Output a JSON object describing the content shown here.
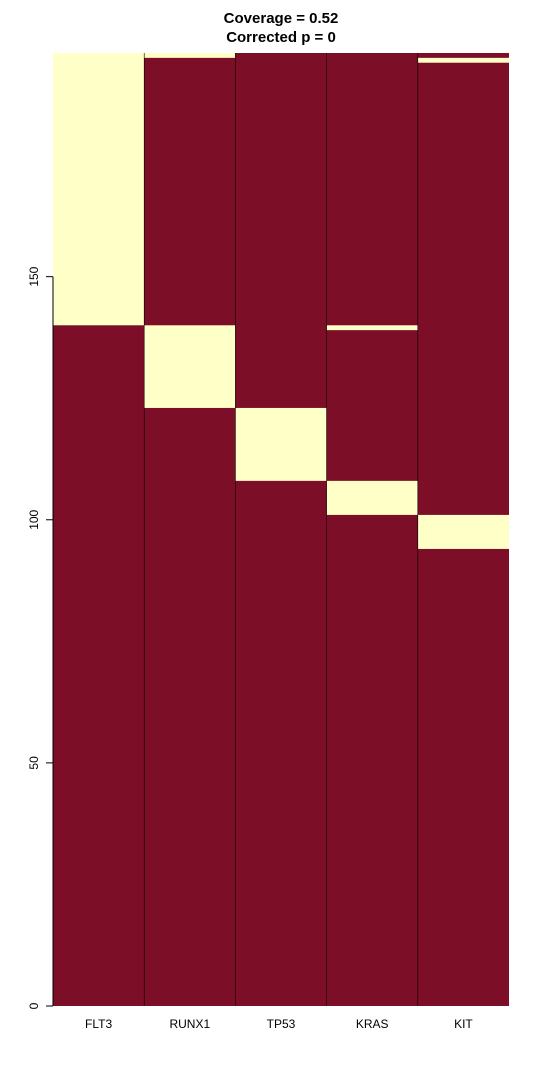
{
  "chart_data": {
    "type": "heatmap",
    "title_lines": [
      "Coverage = 0.52",
      "Corrected p = 0"
    ],
    "xlabel": "",
    "ylabel": "",
    "categories": [
      "FLT3",
      "RUNX1",
      "TP53",
      "KRAS",
      "KIT"
    ],
    "y_ticks": [
      0,
      50,
      100,
      150
    ],
    "ylim": [
      0,
      196
    ],
    "colors": {
      "present": "#FFFFC8",
      "absent": "#7D0E27",
      "grid": "#000000",
      "axis": "#000000"
    },
    "present_ranges": [
      {
        "category": "FLT3",
        "ranges": [
          [
            140,
            196
          ]
        ]
      },
      {
        "category": "RUNX1",
        "ranges": [
          [
            123,
            140
          ],
          [
            195,
            196
          ]
        ]
      },
      {
        "category": "TP53",
        "ranges": [
          [
            108,
            123
          ]
        ]
      },
      {
        "category": "KRAS",
        "ranges": [
          [
            101,
            108
          ],
          [
            139,
            140
          ]
        ]
      },
      {
        "category": "KIT",
        "ranges": [
          [
            94,
            101
          ],
          [
            194,
            195
          ]
        ]
      }
    ]
  }
}
